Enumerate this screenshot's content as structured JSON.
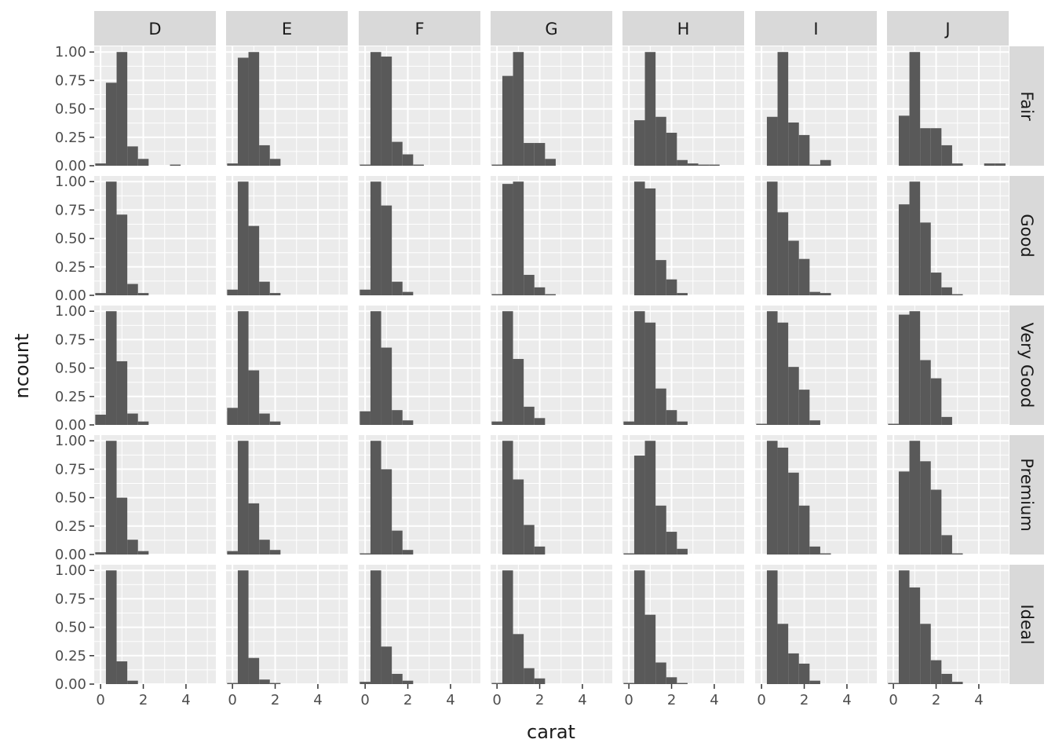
{
  "chart_data": {
    "type": "histogram-facet-grid",
    "xlabel": "carat",
    "ylabel": "ncount",
    "xlim": [
      -0.3,
      5.4
    ],
    "ylim": [
      0,
      1.05
    ],
    "x_ticks": [
      0,
      2,
      4
    ],
    "x_tick_labels": [
      "0",
      "2",
      "4"
    ],
    "y_ticks": [
      0,
      0.25,
      0.5,
      0.75,
      1.0
    ],
    "y_tick_labels": [
      "0.00",
      "0.25",
      "0.50",
      "0.75",
      "1.00"
    ],
    "bin_width": 0.5,
    "bin_centers": [
      0.0,
      0.5,
      1.0,
      1.5,
      2.0,
      2.5,
      3.0,
      3.5,
      4.0,
      4.5,
      5.0
    ],
    "columns": [
      "D",
      "E",
      "F",
      "G",
      "H",
      "I",
      "J"
    ],
    "rows": [
      "Fair",
      "Good",
      "Very Good",
      "Premium",
      "Ideal"
    ],
    "bar_color": "#595959",
    "panel_background": "#ebebeb",
    "strip_background": "#d9d9d9",
    "panels": [
      [
        [
          0.02,
          0.73,
          1.0,
          0.17,
          0.06,
          0,
          0,
          0.01,
          0,
          0,
          0
        ],
        [
          0.02,
          0.95,
          1.0,
          0.18,
          0.06,
          0,
          0,
          0,
          0,
          0,
          0
        ],
        [
          0.01,
          1.0,
          0.96,
          0.21,
          0.1,
          0.01,
          0,
          0,
          0,
          0,
          0
        ],
        [
          0.01,
          0.79,
          1.0,
          0.2,
          0.2,
          0.06,
          0,
          0,
          0,
          0,
          0
        ],
        [
          0,
          0.4,
          1.0,
          0.43,
          0.29,
          0.05,
          0.02,
          0.01,
          0.01,
          0,
          0
        ],
        [
          0,
          0.43,
          1.0,
          0.38,
          0.27,
          0.01,
          0.05,
          0,
          0,
          0,
          0
        ],
        [
          0,
          0.44,
          1.0,
          0.33,
          0.33,
          0.18,
          0.02,
          0,
          0,
          0.02,
          0.02
        ]
      ],
      [
        [
          0.02,
          1.0,
          0.71,
          0.1,
          0.02,
          0,
          0,
          0,
          0,
          0,
          0
        ],
        [
          0.05,
          1.0,
          0.61,
          0.12,
          0.02,
          0,
          0,
          0,
          0,
          0,
          0
        ],
        [
          0.05,
          1.0,
          0.79,
          0.12,
          0.03,
          0,
          0,
          0,
          0,
          0,
          0
        ],
        [
          0.01,
          0.98,
          1.0,
          0.18,
          0.07,
          0.01,
          0,
          0,
          0,
          0,
          0
        ],
        [
          0,
          1.0,
          0.94,
          0.31,
          0.14,
          0.02,
          0,
          0,
          0,
          0,
          0
        ],
        [
          0,
          1.0,
          0.73,
          0.48,
          0.32,
          0.03,
          0.02,
          0,
          0,
          0,
          0
        ],
        [
          0,
          0.8,
          1.0,
          0.64,
          0.2,
          0.07,
          0.01,
          0,
          0,
          0,
          0
        ]
      ],
      [
        [
          0.09,
          1.0,
          0.56,
          0.1,
          0.03,
          0,
          0,
          0,
          0,
          0,
          0
        ],
        [
          0.15,
          1.0,
          0.48,
          0.1,
          0.03,
          0,
          0,
          0,
          0,
          0,
          0
        ],
        [
          0.12,
          1.0,
          0.68,
          0.13,
          0.04,
          0,
          0,
          0,
          0,
          0,
          0
        ],
        [
          0.03,
          1.0,
          0.58,
          0.16,
          0.06,
          0,
          0,
          0,
          0,
          0,
          0
        ],
        [
          0.03,
          1.0,
          0.9,
          0.32,
          0.13,
          0.03,
          0,
          0,
          0,
          0,
          0
        ],
        [
          0.01,
          1.0,
          0.9,
          0.51,
          0.31,
          0.04,
          0,
          0,
          0,
          0,
          0
        ],
        [
          0.01,
          0.97,
          1.0,
          0.57,
          0.41,
          0.07,
          0,
          0,
          0,
          0,
          0
        ]
      ],
      [
        [
          0.02,
          1.0,
          0.5,
          0.13,
          0.03,
          0,
          0,
          0,
          0,
          0,
          0
        ],
        [
          0.03,
          1.0,
          0.45,
          0.13,
          0.04,
          0,
          0,
          0,
          0,
          0,
          0
        ],
        [
          0.01,
          1.0,
          0.75,
          0.21,
          0.04,
          0,
          0,
          0,
          0,
          0,
          0
        ],
        [
          0,
          1.0,
          0.66,
          0.26,
          0.07,
          0,
          0,
          0,
          0,
          0,
          0
        ],
        [
          0.01,
          0.87,
          1.0,
          0.43,
          0.2,
          0.05,
          0,
          0,
          0,
          0,
          0
        ],
        [
          0,
          1.0,
          0.94,
          0.72,
          0.43,
          0.07,
          0.01,
          0,
          0,
          0,
          0
        ],
        [
          0,
          0.73,
          1.0,
          0.82,
          0.57,
          0.17,
          0.01,
          0,
          0,
          0,
          0
        ]
      ],
      [
        [
          0,
          1.0,
          0.2,
          0.03,
          0,
          0,
          0,
          0,
          0,
          0,
          0
        ],
        [
          0.01,
          1.0,
          0.23,
          0.04,
          0.01,
          0,
          0,
          0,
          0,
          0,
          0
        ],
        [
          0.02,
          1.0,
          0.33,
          0.09,
          0.03,
          0,
          0,
          0,
          0,
          0,
          0
        ],
        [
          0.01,
          1.0,
          0.44,
          0.14,
          0.05,
          0,
          0,
          0,
          0,
          0,
          0
        ],
        [
          0.01,
          1.0,
          0.61,
          0.19,
          0.06,
          0.01,
          0,
          0,
          0,
          0,
          0
        ],
        [
          0,
          1.0,
          0.53,
          0.27,
          0.18,
          0.03,
          0,
          0,
          0,
          0,
          0
        ],
        [
          0.01,
          1.0,
          0.85,
          0.53,
          0.21,
          0.09,
          0.02,
          0,
          0,
          0,
          0
        ]
      ]
    ]
  }
}
